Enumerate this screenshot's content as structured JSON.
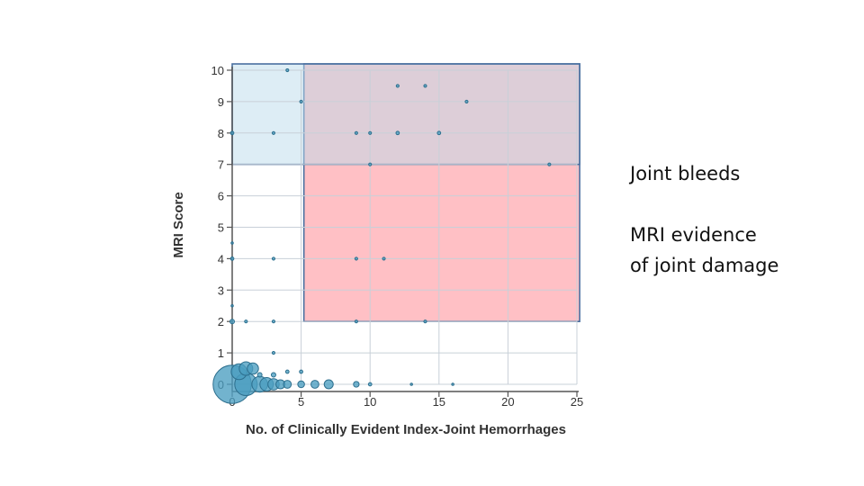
{
  "chart_data": {
    "type": "scatter",
    "title": "",
    "xlabel": "No. of Clinically Evident Index-Joint Hemorrhages",
    "ylabel": "MRI Score",
    "xlim": [
      0,
      25
    ],
    "ylim": [
      0,
      10
    ],
    "xticks": [
      "0",
      "5",
      "10",
      "15",
      "20",
      "25"
    ],
    "yticks": [
      "0",
      "1",
      "2",
      "3",
      "4",
      "5",
      "6",
      "7",
      "8",
      "9",
      "10"
    ],
    "grid": true,
    "legend": "none",
    "points": [
      {
        "x": 0,
        "y": 0,
        "size": 34
      },
      {
        "x": 0.5,
        "y": 0.4,
        "size": 14
      },
      {
        "x": 1,
        "y": 0.5,
        "size": 12
      },
      {
        "x": 1,
        "y": 0,
        "size": 20
      },
      {
        "x": 1.5,
        "y": 0.5,
        "size": 10
      },
      {
        "x": 2,
        "y": 0,
        "size": 14
      },
      {
        "x": 2.5,
        "y": 0,
        "size": 12
      },
      {
        "x": 3,
        "y": 0,
        "size": 10
      },
      {
        "x": 3.5,
        "y": 0,
        "size": 8
      },
      {
        "x": 4,
        "y": 0,
        "size": 7
      },
      {
        "x": 5,
        "y": 0,
        "size": 6
      },
      {
        "x": 6,
        "y": 0,
        "size": 7
      },
      {
        "x": 7,
        "y": 0,
        "size": 8
      },
      {
        "x": 9,
        "y": 0,
        "size": 5
      },
      {
        "x": 10,
        "y": 0,
        "size": 3
      },
      {
        "x": 13,
        "y": 0,
        "size": 2
      },
      {
        "x": 16,
        "y": 0,
        "size": 2
      },
      {
        "x": 2,
        "y": 0.3,
        "size": 4
      },
      {
        "x": 3,
        "y": 0.3,
        "size": 4
      },
      {
        "x": 4,
        "y": 0.4,
        "size": 3
      },
      {
        "x": 5,
        "y": 0.4,
        "size": 3
      },
      {
        "x": 3,
        "y": 1,
        "size": 2.5
      },
      {
        "x": 0,
        "y": 2,
        "size": 4
      },
      {
        "x": 1,
        "y": 2,
        "size": 2.5
      },
      {
        "x": 3,
        "y": 2,
        "size": 2.5
      },
      {
        "x": 9,
        "y": 2,
        "size": 2.5
      },
      {
        "x": 14,
        "y": 2,
        "size": 2.5
      },
      {
        "x": 0,
        "y": 2.5,
        "size": 2
      },
      {
        "x": 0,
        "y": 4,
        "size": 3
      },
      {
        "x": 3,
        "y": 4,
        "size": 2.5
      },
      {
        "x": 9,
        "y": 4,
        "size": 2.5
      },
      {
        "x": 11,
        "y": 4,
        "size": 2.5
      },
      {
        "x": 0,
        "y": 4.5,
        "size": 2
      },
      {
        "x": 10,
        "y": 7,
        "size": 2.5
      },
      {
        "x": 23,
        "y": 7,
        "size": 2.5
      },
      {
        "x": 0,
        "y": 8,
        "size": 3
      },
      {
        "x": 3,
        "y": 8,
        "size": 2.5
      },
      {
        "x": 9,
        "y": 8,
        "size": 2.5
      },
      {
        "x": 10,
        "y": 8,
        "size": 2.5
      },
      {
        "x": 12,
        "y": 8,
        "size": 3
      },
      {
        "x": 15,
        "y": 8,
        "size": 3
      },
      {
        "x": 5,
        "y": 9,
        "size": 2.5
      },
      {
        "x": 17,
        "y": 9,
        "size": 2.5
      },
      {
        "x": 12,
        "y": 9.5,
        "size": 2.5
      },
      {
        "x": 14,
        "y": 9.5,
        "size": 2.5
      },
      {
        "x": 4,
        "y": 10,
        "size": 2.5
      }
    ],
    "regions": [
      {
        "name": "joint-bleeds",
        "x": [
          5.2,
          25.2
        ],
        "y": [
          2,
          10.2
        ],
        "color": "#ff9aa2"
      },
      {
        "name": "mri-damage",
        "x": [
          0,
          25.2
        ],
        "y": [
          7,
          10.2
        ],
        "color": "#bcdcec"
      }
    ],
    "colors": {
      "marker": "#4a9ec0",
      "marker_edge": "#2d6f8e",
      "axis": "#555555",
      "grid": "#c8d0d8"
    }
  },
  "annotations": {
    "bleeds": "Joint bleeds",
    "mri": "MRI evidence\nof joint damage"
  }
}
